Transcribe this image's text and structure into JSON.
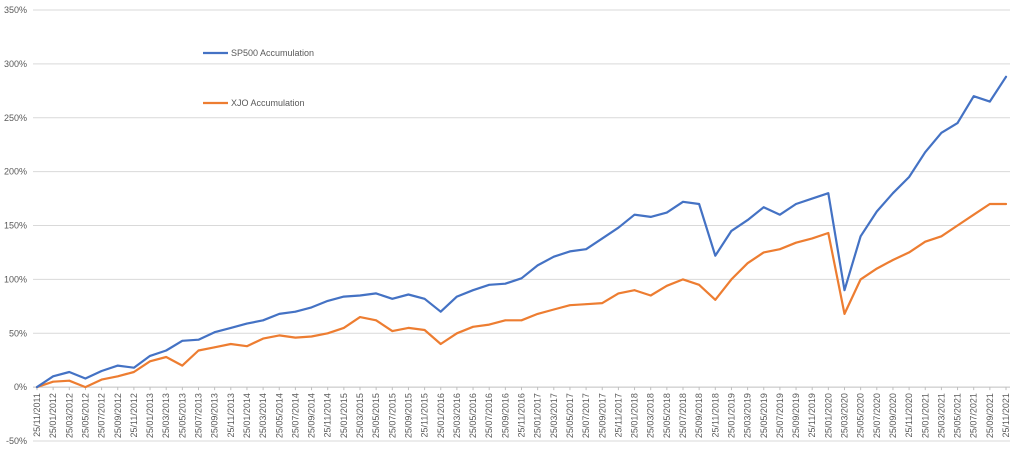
{
  "chart_data": {
    "type": "line",
    "title": "",
    "xlabel": "",
    "ylabel": "",
    "ylim": [
      -50,
      350
    ],
    "yticks": [
      -50,
      0,
      50,
      100,
      150,
      200,
      250,
      300,
      350
    ],
    "ytick_labels": [
      "-50%",
      "0%",
      "50%",
      "100%",
      "150%",
      "200%",
      "250%",
      "300%",
      "350%"
    ],
    "x": [
      "25/11/2011",
      "25/01/2012",
      "25/03/2012",
      "25/05/2012",
      "25/07/2012",
      "25/09/2012",
      "25/11/2012",
      "25/01/2013",
      "25/03/2013",
      "25/05/2013",
      "25/07/2013",
      "25/09/2013",
      "25/11/2013",
      "25/01/2014",
      "25/03/2014",
      "25/05/2014",
      "25/07/2014",
      "25/09/2014",
      "25/11/2014",
      "25/01/2015",
      "25/03/2015",
      "25/05/2015",
      "25/07/2015",
      "25/09/2015",
      "25/11/2015",
      "25/01/2016",
      "25/03/2016",
      "25/05/2016",
      "25/07/2016",
      "25/09/2016",
      "25/11/2016",
      "25/01/2017",
      "25/03/2017",
      "25/05/2017",
      "25/07/2017",
      "25/09/2017",
      "25/11/2017",
      "25/01/2018",
      "25/03/2018",
      "25/05/2018",
      "25/07/2018",
      "25/09/2018",
      "25/11/2018",
      "25/01/2019",
      "25/03/2019",
      "25/05/2019",
      "25/07/2019",
      "25/09/2019",
      "25/11/2019",
      "25/01/2020",
      "25/03/2020",
      "25/05/2020",
      "25/07/2020",
      "25/09/2020",
      "25/11/2020",
      "25/01/2021",
      "25/03/2021",
      "25/05/2021",
      "25/07/2021",
      "25/09/2021",
      "25/11/2021"
    ],
    "series": [
      {
        "name": "SP500 Accumulation",
        "color": "#4472C4",
        "values": [
          0,
          10,
          14,
          8,
          15,
          20,
          18,
          29,
          34,
          43,
          44,
          51,
          55,
          59,
          62,
          68,
          70,
          74,
          80,
          84,
          85,
          87,
          82,
          86,
          82,
          70,
          84,
          90,
          95,
          96,
          101,
          113,
          121,
          126,
          128,
          138,
          148,
          160,
          158,
          162,
          172,
          170,
          122,
          145,
          155,
          167,
          160,
          170,
          175,
          180,
          90,
          140,
          163,
          180,
          195,
          218,
          236,
          245,
          270,
          265,
          288
        ]
      },
      {
        "name": "XJO Accumulation",
        "color": "#ED7D31",
        "values": [
          0,
          5,
          6,
          0,
          7,
          10,
          14,
          24,
          28,
          20,
          34,
          37,
          40,
          38,
          45,
          48,
          46,
          47,
          50,
          55,
          65,
          62,
          52,
          55,
          53,
          40,
          50,
          56,
          58,
          62,
          62,
          68,
          72,
          76,
          77,
          78,
          87,
          90,
          85,
          94,
          100,
          95,
          81,
          100,
          115,
          125,
          128,
          134,
          138,
          143,
          68,
          100,
          110,
          118,
          125,
          135,
          140,
          150,
          160,
          170,
          170
        ]
      }
    ],
    "legend_position": "top-left",
    "grid": "horizontal"
  }
}
